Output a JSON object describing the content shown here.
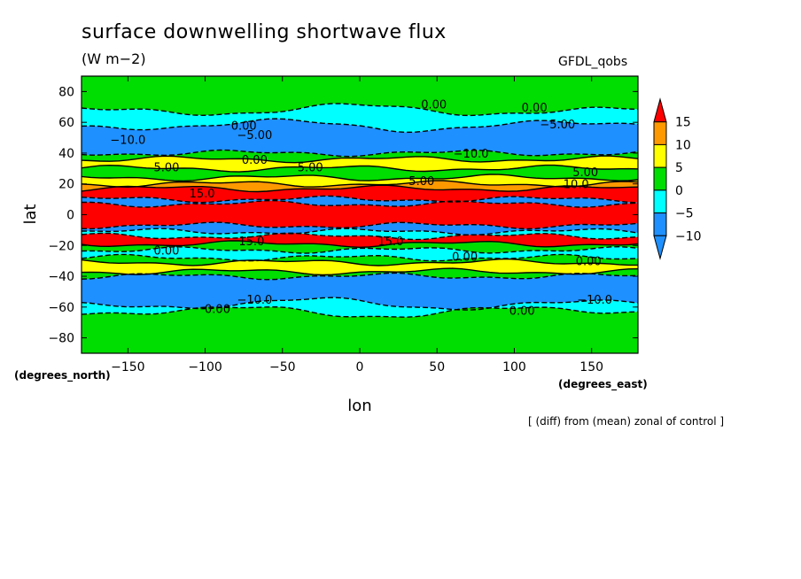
{
  "title": "surface downwelling shortwave flux",
  "units": "(W m−2)",
  "model_label": "GFDL_qobs",
  "footnote": "[ (diff) from (mean) zonal of control ]",
  "chart_data": {
    "type": "heatmap",
    "title": "surface downwelling shortwave flux",
    "subtitle": "(W m−2)",
    "xlabel": "lon",
    "ylabel": "lat",
    "x_unit_label": "(degrees_east)",
    "y_unit_label": "(degrees_north)",
    "xlim": [
      -180,
      180
    ],
    "ylim": [
      -90,
      90
    ],
    "x_ticks": [
      -150,
      -100,
      -50,
      0,
      50,
      100,
      150
    ],
    "x_tick_labels": [
      "−150",
      "−100",
      "−50",
      "0",
      "50",
      "100",
      "150"
    ],
    "y_ticks": [
      80,
      60,
      40,
      20,
      0,
      -20,
      -40,
      -60,
      -80
    ],
    "y_tick_labels": [
      "80",
      "60",
      "40",
      "20",
      "0",
      "−20",
      "−40",
      "−60",
      "−80"
    ],
    "colorbar": {
      "levels": [
        -10,
        -5,
        0,
        5,
        10,
        15
      ],
      "tick_labels": [
        "−10",
        "−5",
        "0",
        "5",
        "10",
        "15"
      ],
      "bins": [
        {
          "range": "<-10",
          "color": "#1e90ff"
        },
        {
          "range": "-10 to -5",
          "color": "#1e90ff"
        },
        {
          "range": "-5 to 0",
          "color": "#00ffff"
        },
        {
          "range": "0 to 5",
          "color": "#00dd00"
        },
        {
          "range": "5 to 10",
          "color": "#ffff00"
        },
        {
          "range": "10 to 15",
          "color": "#ff9900"
        },
        {
          "range": ">15",
          "color": "#ff0000"
        }
      ]
    },
    "bands": [
      {
        "lat_from": 90,
        "lat_to": 68,
        "value": 0,
        "color": "#00dd00"
      },
      {
        "lat_from": 68,
        "lat_to": 58,
        "value": -2.5,
        "color": "#00ffff"
      },
      {
        "lat_from": 58,
        "lat_to": 40,
        "value": -10,
        "color": "#1e90ff"
      },
      {
        "lat_from": 40,
        "lat_to": 36,
        "value": 2.5,
        "color": "#00dd00"
      },
      {
        "lat_from": 36,
        "lat_to": 30,
        "value": 7.5,
        "color": "#ffff00"
      },
      {
        "lat_from": 30,
        "lat_to": 24,
        "value": 2.5,
        "color": "#00dd00"
      },
      {
        "lat_from": 24,
        "lat_to": 20,
        "value": 7.5,
        "color": "#ffff00"
      },
      {
        "lat_from": 20,
        "lat_to": 17,
        "value": 12.5,
        "color": "#ff9900"
      },
      {
        "lat_from": 17,
        "lat_to": 10,
        "value": 20,
        "color": "#ff0000"
      },
      {
        "lat_from": 10,
        "lat_to": 7,
        "value": -10,
        "color": "#1e90ff"
      },
      {
        "lat_from": 7,
        "lat_to": -7,
        "value": 20,
        "color": "#ff0000"
      },
      {
        "lat_from": -7,
        "lat_to": -11,
        "value": -10,
        "color": "#1e90ff"
      },
      {
        "lat_from": -11,
        "lat_to": -14,
        "value": -2.5,
        "color": "#00ffff"
      },
      {
        "lat_from": -14,
        "lat_to": -19,
        "value": 20,
        "color": "#ff0000"
      },
      {
        "lat_from": -19,
        "lat_to": -23,
        "value": 2.5,
        "color": "#00dd00"
      },
      {
        "lat_from": -23,
        "lat_to": -28,
        "value": -2.5,
        "color": "#00ffff"
      },
      {
        "lat_from": -28,
        "lat_to": -31,
        "value": 2.5,
        "color": "#00dd00"
      },
      {
        "lat_from": -31,
        "lat_to": -37,
        "value": 7.5,
        "color": "#ffff00"
      },
      {
        "lat_from": -37,
        "lat_to": -40,
        "value": 2.5,
        "color": "#00dd00"
      },
      {
        "lat_from": -40,
        "lat_to": -58,
        "value": -10,
        "color": "#1e90ff"
      },
      {
        "lat_from": -58,
        "lat_to": -63,
        "value": -2.5,
        "color": "#00ffff"
      },
      {
        "lat_from": -63,
        "lat_to": -90,
        "value": 0,
        "color": "#00dd00"
      }
    ],
    "contour_labels": [
      {
        "text": "0.00",
        "lon": 48,
        "lat": 72
      },
      {
        "text": "0.00",
        "lon": 113,
        "lat": 70
      },
      {
        "text": "0.00",
        "lon": -75,
        "lat": 58
      },
      {
        "text": "−5.00",
        "lon": 128,
        "lat": 59
      },
      {
        "text": "−5.00",
        "lon": -68,
        "lat": 52
      },
      {
        "text": "−10.0",
        "lon": -150,
        "lat": 49
      },
      {
        "text": "−10.0",
        "lon": 72,
        "lat": 40
      },
      {
        "text": "5.00",
        "lon": -125,
        "lat": 31
      },
      {
        "text": "5.00",
        "lon": -32,
        "lat": 31
      },
      {
        "text": "5.00",
        "lon": 146,
        "lat": 28
      },
      {
        "text": "0.00",
        "lon": -68,
        "lat": 36
      },
      {
        "text": "5.00",
        "lon": 40,
        "lat": 22
      },
      {
        "text": "10.0",
        "lon": 140,
        "lat": 20
      },
      {
        "text": "15.0",
        "lon": -102,
        "lat": 14
      },
      {
        "text": "15.0",
        "lon": -70,
        "lat": -17
      },
      {
        "text": "15.0",
        "lon": 20,
        "lat": -17
      },
      {
        "text": "0.00",
        "lon": -125,
        "lat": -23
      },
      {
        "text": "0.00",
        "lon": 68,
        "lat": -27
      },
      {
        "text": "0.00",
        "lon": 148,
        "lat": -30
      },
      {
        "text": "−10.0",
        "lon": -68,
        "lat": -55
      },
      {
        "text": "−10.0",
        "lon": 152,
        "lat": -55
      },
      {
        "text": "0.00",
        "lon": -92,
        "lat": -61
      },
      {
        "text": "0.00",
        "lon": 105,
        "lat": -62
      }
    ]
  }
}
